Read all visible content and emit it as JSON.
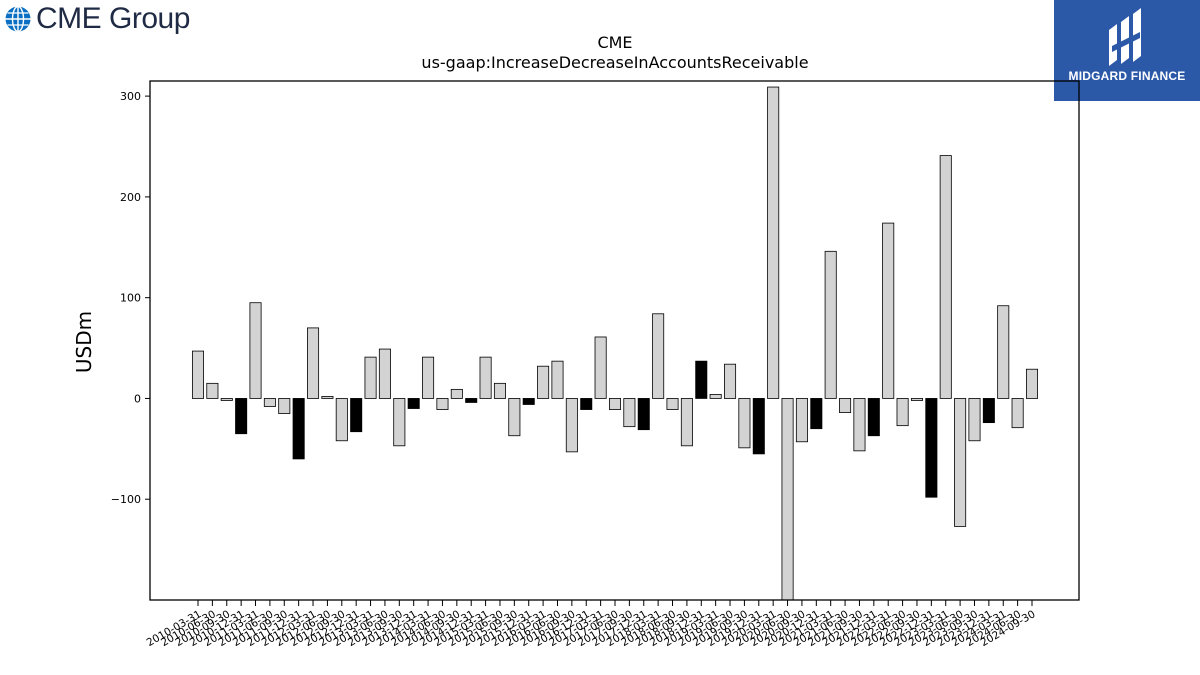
{
  "header": {
    "cme_logo_text": "CME Group",
    "midgard_logo_text": "MIDGARD FINANCE"
  },
  "colors": {
    "bar_light": "#d3d3d3",
    "bar_dark": "#000000",
    "midgard_blue": "#2c58a8",
    "cme_blue": "#0a6fc2"
  },
  "chart_data": {
    "type": "bar",
    "title": "CME",
    "subtitle": "us-gaap:IncreaseDecreaseInAccountsReceivable",
    "xlabel": "",
    "ylabel": "USDm",
    "ylim": [
      -200,
      315
    ],
    "yticks": [
      -100,
      0,
      100,
      200,
      300
    ],
    "grid": false,
    "categories": [
      "2010-03-31",
      "2010-06-30",
      "2010-09-30",
      "2010-12-31",
      "2011-03-31",
      "2011-06-30",
      "2011-09-30",
      "2011-12-31",
      "2012-03-31",
      "2012-06-30",
      "2012-09-30",
      "2012-12-31",
      "2013-03-31",
      "2013-06-30",
      "2013-09-30",
      "2013-12-31",
      "2014-03-31",
      "2014-06-30",
      "2014-09-30",
      "2014-12-31",
      "2015-03-31",
      "2015-06-30",
      "2015-09-30",
      "2015-12-31",
      "2016-03-31",
      "2016-06-30",
      "2016-09-30",
      "2016-12-31",
      "2017-03-31",
      "2017-06-30",
      "2017-09-30",
      "2017-12-31",
      "2018-03-31",
      "2018-06-30",
      "2018-09-30",
      "2018-12-31",
      "2019-03-31",
      "2019-06-30",
      "2019-09-30",
      "2019-12-31",
      "2020-03-31",
      "2020-06-30",
      "2020-09-30",
      "2020-12-31",
      "2021-03-31",
      "2021-06-30",
      "2021-09-30",
      "2021-12-31",
      "2022-03-31",
      "2022-06-30",
      "2022-09-30",
      "2022-12-31",
      "2023-03-31",
      "2023-06-30",
      "2023-09-30",
      "2023-12-31",
      "2024-03-31",
      "2024-06-30",
      "2024-09-30"
    ],
    "values": [
      47,
      15,
      -2,
      -35,
      95,
      -8,
      -15,
      -60,
      70,
      2,
      -42,
      -33,
      41,
      49,
      -47,
      -10,
      41,
      -11,
      9,
      -4,
      41,
      15,
      -37,
      -6,
      32,
      37,
      -53,
      -11,
      61,
      -11,
      -28,
      -31,
      84,
      -11,
      -47,
      37,
      4,
      34,
      -49,
      -55,
      309,
      -200,
      -43,
      -30,
      146,
      -14,
      -52,
      -37,
      174,
      -27,
      -2,
      -98,
      241,
      -127,
      -42,
      -24,
      92,
      -29,
      29
    ],
    "highlight": [
      false,
      false,
      false,
      true,
      false,
      false,
      false,
      true,
      false,
      false,
      false,
      true,
      false,
      false,
      false,
      true,
      false,
      false,
      false,
      true,
      false,
      false,
      false,
      true,
      false,
      false,
      false,
      true,
      false,
      false,
      false,
      true,
      false,
      false,
      false,
      true,
      false,
      false,
      false,
      true,
      false,
      false,
      false,
      true,
      false,
      false,
      false,
      true,
      false,
      false,
      false,
      true,
      false,
      false,
      false,
      true,
      false,
      false,
      false
    ]
  }
}
